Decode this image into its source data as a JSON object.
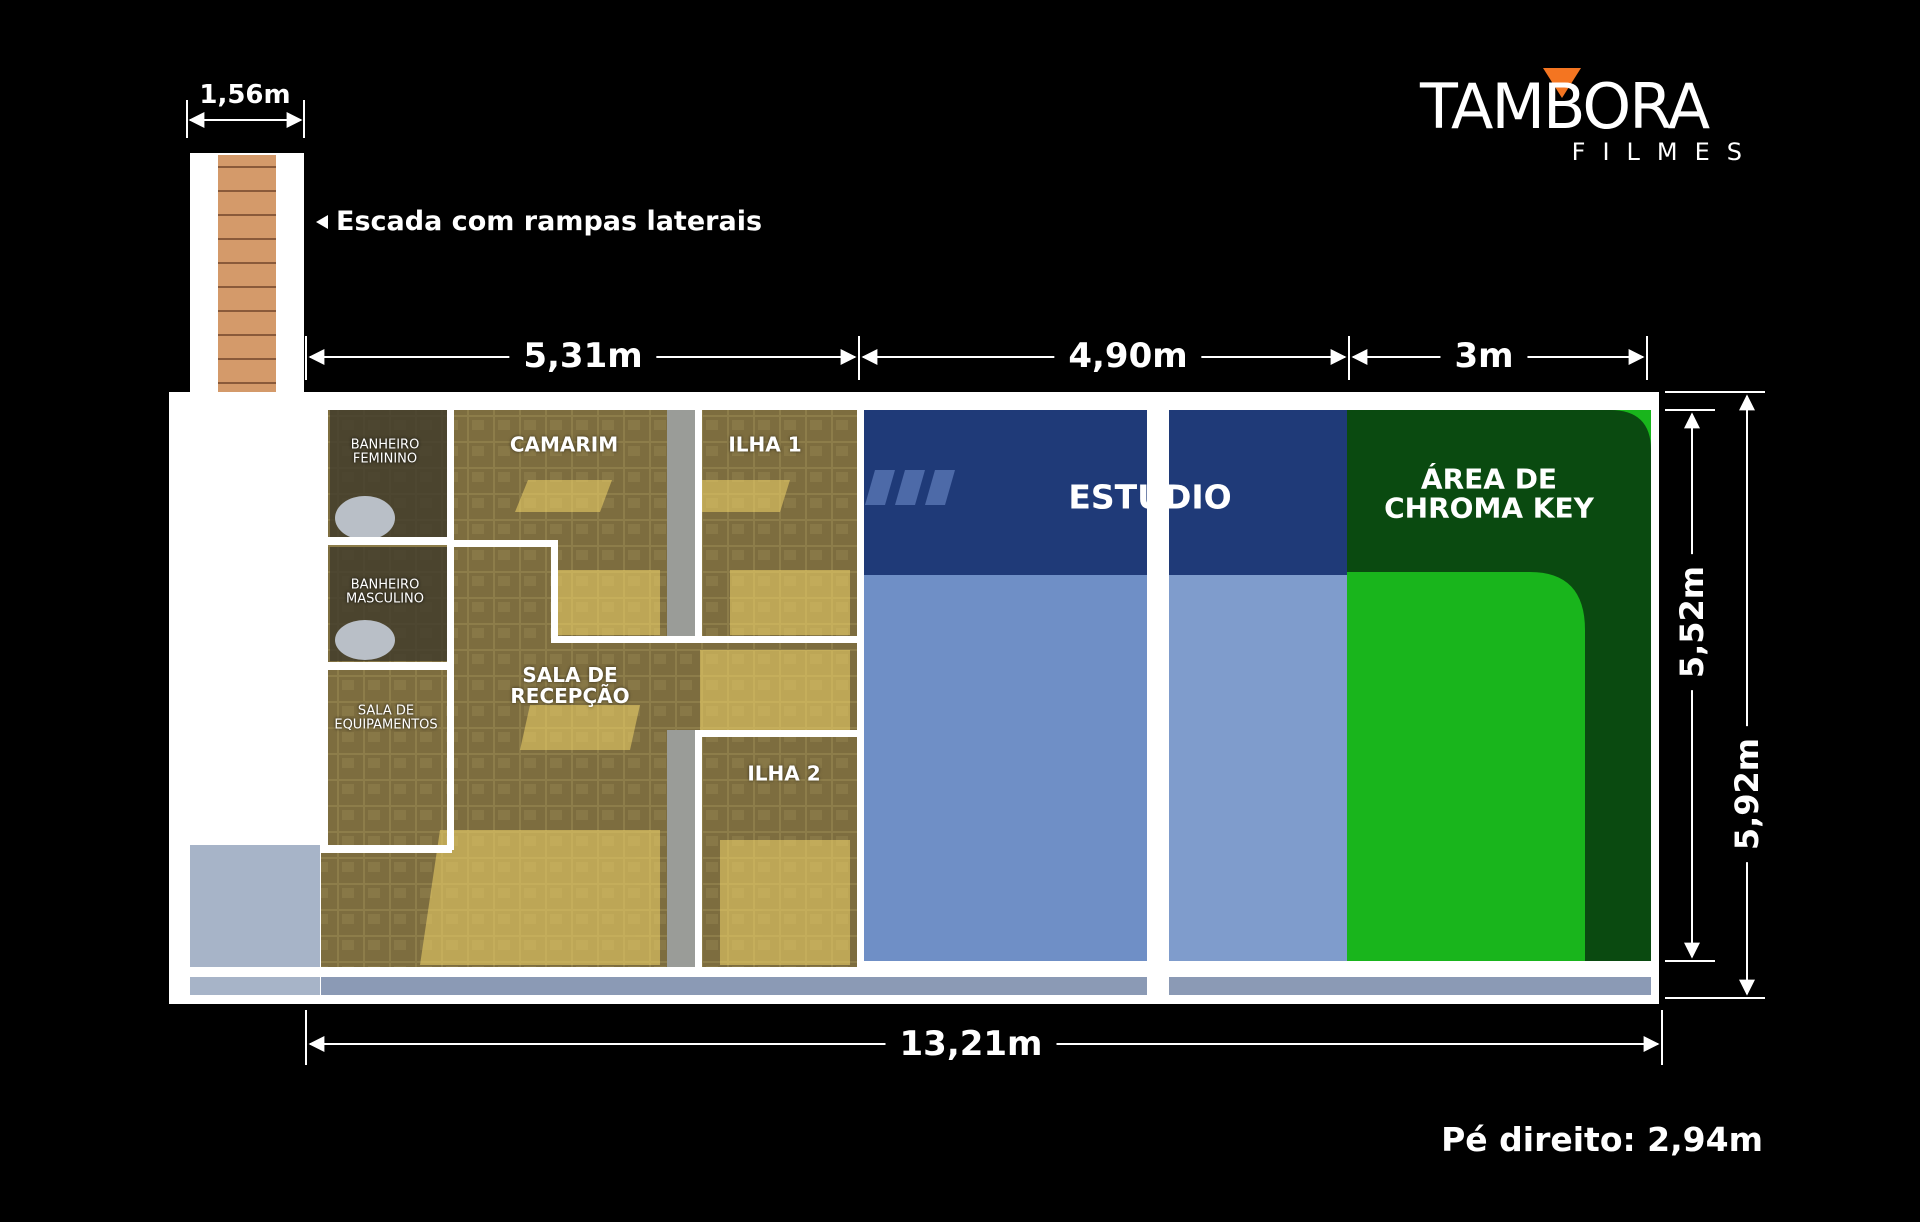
{
  "brand": {
    "name": "TAMBORA",
    "sub": "FILMES",
    "accent": "#f47521"
  },
  "stairs": {
    "width_label": "1,56m",
    "caption": "Escada com rampas laterais"
  },
  "dimensions": {
    "top": [
      "5,31m",
      "4,90m",
      "3m"
    ],
    "bottom": "13,21m",
    "right_inner": "5,52m",
    "right_outer": "5,92m"
  },
  "rooms": {
    "banheiro_feminino": "BANHEIRO\nFEMININO",
    "banheiro_masculino": "BANHEIRO\nMASCULINO",
    "sala_equipamentos": "SALA DE\nEQUIPAMENTOS",
    "camarim": "CAMARIM",
    "sala_recepcao": "SALA DE\nRECEPÇÃO",
    "ilha1": "ILHA 1",
    "ilha2": "ILHA 2",
    "estudio": "ESTÚDIO",
    "chroma": "ÁREA DE\nCHROMA KEY"
  },
  "colors": {
    "tile": "#8a7a48",
    "studio": "#6f8fc6",
    "studio_shadow": "#1f3a78",
    "chroma": "#19b51c",
    "chroma_shadow": "#0a4a10",
    "wall": "#ffffff"
  },
  "ceiling_height": "Pé direito: 2,94m"
}
